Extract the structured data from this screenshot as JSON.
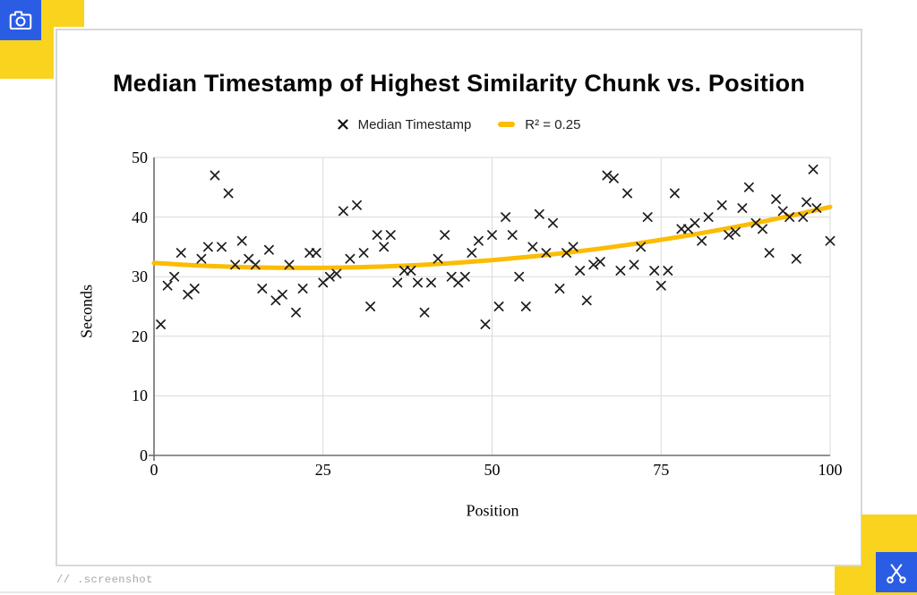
{
  "page": {
    "footer_label": "// .screenshot",
    "colors": {
      "accent_blue": "#2b5ce4",
      "accent_yellow": "#f9d31d",
      "trend_yellow": "#fbbc04",
      "marker_black": "#1c1c1c"
    },
    "toolbar": {
      "camera_icon": "camera-icon",
      "scissors_icon": "scissors-icon"
    }
  },
  "chart_data": {
    "type": "scatter",
    "title": "Median Timestamp of Highest Similarity Chunk vs. Position",
    "xlabel": "Position",
    "ylabel": "Seconds",
    "xlim": [
      0,
      100
    ],
    "ylim": [
      0,
      50
    ],
    "x_ticks": [
      0,
      25,
      50,
      75,
      100
    ],
    "y_ticks": [
      0,
      10,
      20,
      30,
      40,
      50
    ],
    "grid": true,
    "legend_position": "top",
    "legend": [
      {
        "label": "Median Timestamp",
        "marker": "x-cross",
        "color": "#1c1c1c"
      },
      {
        "label": "R² = 0.25",
        "marker": "line",
        "color": "#fbbc04"
      }
    ],
    "series": [
      {
        "name": "Median Timestamp",
        "marker": "x",
        "color": "#1c1c1c",
        "points": [
          [
            1,
            22
          ],
          [
            2,
            28.5
          ],
          [
            3,
            30
          ],
          [
            4,
            34
          ],
          [
            5,
            27
          ],
          [
            6,
            28
          ],
          [
            7,
            33
          ],
          [
            8,
            35
          ],
          [
            9,
            47
          ],
          [
            10,
            35
          ],
          [
            11,
            44
          ],
          [
            12,
            32
          ],
          [
            13,
            36
          ],
          [
            14,
            33
          ],
          [
            15,
            32
          ],
          [
            16,
            28
          ],
          [
            17,
            34.5
          ],
          [
            18,
            26
          ],
          [
            19,
            27
          ],
          [
            20,
            32
          ],
          [
            21,
            24
          ],
          [
            22,
            28
          ],
          [
            23,
            34
          ],
          [
            24,
            34
          ],
          [
            25,
            29
          ],
          [
            26,
            30
          ],
          [
            27,
            30.5
          ],
          [
            28,
            41
          ],
          [
            29,
            33
          ],
          [
            30,
            42
          ],
          [
            31,
            34
          ],
          [
            32,
            25
          ],
          [
            33,
            37
          ],
          [
            34,
            35
          ],
          [
            35,
            37
          ],
          [
            36,
            29
          ],
          [
            37,
            31
          ],
          [
            38,
            31
          ],
          [
            39,
            29
          ],
          [
            40,
            24
          ],
          [
            41,
            29
          ],
          [
            42,
            33
          ],
          [
            43,
            37
          ],
          [
            44,
            30
          ],
          [
            45,
            29
          ],
          [
            46,
            30
          ],
          [
            47,
            34
          ],
          [
            48,
            36
          ],
          [
            49,
            22
          ],
          [
            50,
            37
          ],
          [
            51,
            25
          ],
          [
            52,
            40
          ],
          [
            53,
            37
          ],
          [
            54,
            30
          ],
          [
            55,
            25
          ],
          [
            56,
            35
          ],
          [
            57,
            40.5
          ],
          [
            58,
            34
          ],
          [
            59,
            39
          ],
          [
            60,
            28
          ],
          [
            61,
            34
          ],
          [
            62,
            35
          ],
          [
            63,
            31
          ],
          [
            64,
            26
          ],
          [
            65,
            32
          ],
          [
            66,
            32.5
          ],
          [
            67,
            47
          ],
          [
            68,
            46.5
          ],
          [
            69,
            31
          ],
          [
            70,
            44
          ],
          [
            71,
            32
          ],
          [
            72,
            35
          ],
          [
            73,
            40
          ],
          [
            74,
            31
          ],
          [
            75,
            28.5
          ],
          [
            76,
            31
          ],
          [
            77,
            44
          ],
          [
            78,
            38
          ],
          [
            79,
            38
          ],
          [
            80,
            39
          ],
          [
            81,
            36
          ],
          [
            82,
            40
          ],
          [
            84,
            42
          ],
          [
            85,
            37
          ],
          [
            86,
            37.5
          ],
          [
            87,
            41.5
          ],
          [
            88,
            45
          ],
          [
            89,
            39
          ],
          [
            90,
            38
          ],
          [
            91,
            34
          ],
          [
            92,
            43
          ],
          [
            93,
            41
          ],
          [
            94,
            40
          ],
          [
            95,
            33
          ],
          [
            96,
            40
          ],
          [
            96.5,
            42.5
          ],
          [
            97.5,
            48
          ],
          [
            98,
            41.5
          ],
          [
            100,
            36
          ]
        ]
      }
    ],
    "trend": {
      "label": "R² = 0.25",
      "color": "#fbbc04",
      "shape": "quadratic",
      "a": 0.00169,
      "b": -0.075,
      "c": 32.3
    }
  }
}
